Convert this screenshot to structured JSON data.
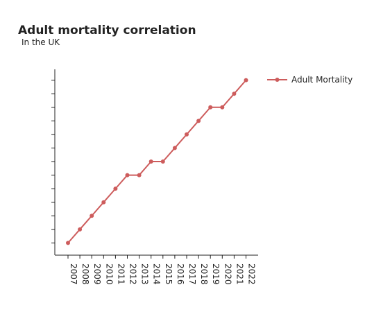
{
  "chart_data": {
    "type": "line",
    "title": "Adult mortality correlation",
    "subtitle": "In the UK",
    "xlabel": "",
    "ylabel": "",
    "categories": [
      "2007",
      "2008",
      "2009",
      "2010",
      "2011",
      "2012",
      "2013",
      "2014",
      "2015",
      "2016",
      "2017",
      "2018",
      "2019",
      "2020",
      "2021",
      "2022"
    ],
    "series": [
      {
        "name": "Adult Mortality",
        "color": "#cd5c5c",
        "values": [
          1,
          2,
          3,
          4,
          5,
          6,
          6,
          7,
          7,
          8,
          9,
          10,
          11,
          11,
          12,
          13
        ]
      }
    ],
    "ylim": [
      0.1,
      13.8
    ],
    "y_tick_labels_visible": false,
    "grid": false,
    "legend_placement": "top-right"
  }
}
